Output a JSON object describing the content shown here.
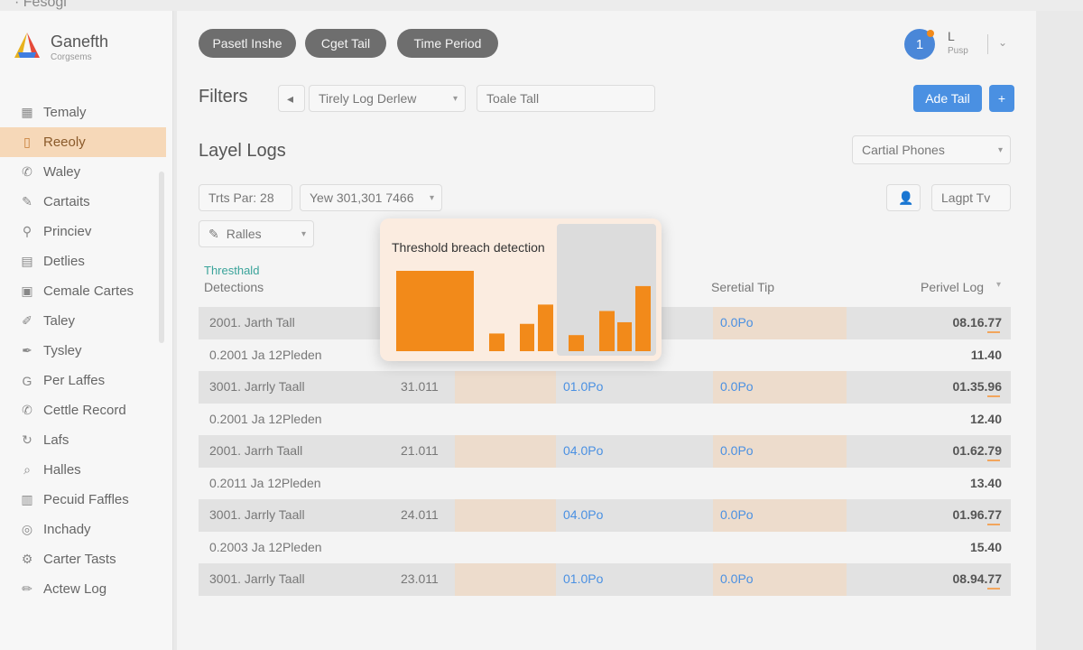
{
  "top_strip": {
    "text": "· Fesogi"
  },
  "brand": {
    "name": "Ganefth",
    "subtitle": "Corgsems"
  },
  "sidebar": {
    "items": [
      {
        "label": "Temaly",
        "icon": "grid-icon"
      },
      {
        "label": "Reeoly",
        "icon": "document-icon",
        "active": true
      },
      {
        "label": "Waley",
        "icon": "phone-icon"
      },
      {
        "label": "Cartaits",
        "icon": "edit-icon"
      },
      {
        "label": "Princiev",
        "icon": "pin-icon"
      },
      {
        "label": "Detlies",
        "icon": "table-icon"
      },
      {
        "label": "Cemale Cartes",
        "icon": "layout-icon"
      },
      {
        "label": "Taley",
        "icon": "pencil-icon"
      },
      {
        "label": "Tysley",
        "icon": "brush-icon"
      },
      {
        "label": "Per Laffes",
        "icon": "g-icon"
      },
      {
        "label": "Cettle Record",
        "icon": "phone-icon"
      },
      {
        "label": "Lafs",
        "icon": "refresh-icon"
      },
      {
        "label": "Halles",
        "icon": "search-icon"
      },
      {
        "label": "Pecuid Faffles",
        "icon": "chart-icon"
      },
      {
        "label": "Inchady",
        "icon": "circle-icon"
      },
      {
        "label": "Carter Tasts",
        "icon": "gear-icon"
      },
      {
        "label": "Actew Log",
        "icon": "pen-icon"
      }
    ]
  },
  "header": {
    "pills": [
      "Pasetl Inshe",
      "Cget Tail",
      "Time Period"
    ],
    "user": {
      "initial": "1",
      "name": "L",
      "sub": "Pusp"
    }
  },
  "filters": {
    "title": "Filters",
    "back_label": "◂",
    "select_value": "Tirely Log Derlew",
    "input_value": "Toale Tall",
    "add_button": "Ade Tail",
    "add_icon_button": "+"
  },
  "logs": {
    "title": "Layel Logs",
    "dropdown_value": "Cartial Phones",
    "chip_1": "Trts Par: 28",
    "chip_2": "Yew 301,301 7466",
    "chip_3": "Ralles",
    "export_button": "Lagpt Tv"
  },
  "table": {
    "headers": {
      "col1_top": "Thresthald",
      "col1_bottom": "Detections",
      "col4": "Seretial Tip",
      "col5": "Perivel Log"
    },
    "rows": [
      {
        "kind": "shaded",
        "c1": "2001. Jarth Tall",
        "c2": "",
        "c3": "",
        "c4": "0.0Po",
        "c5": "08.16.77"
      },
      {
        "kind": "plain",
        "c1": "0.2001 Ja 12Pleden",
        "c5": "11.40"
      },
      {
        "kind": "shaded",
        "c1": "3001. Jarrly Taall",
        "c2": "31.011",
        "c3": "01.0Po",
        "c4": "0.0Po",
        "c5": "01.35.96"
      },
      {
        "kind": "plain",
        "c1": "0.2001 Ja 12Pleden",
        "c5": "12.40"
      },
      {
        "kind": "shaded",
        "c1": "2001. Jarrh Taall",
        "c2": "21.011",
        "c3": "04.0Po",
        "c4": "0.0Po",
        "c5": "01.62.79"
      },
      {
        "kind": "plain",
        "c1": "0.2011 Ja 12Pleden",
        "c5": "13.40"
      },
      {
        "kind": "shaded",
        "c1": "3001. Jarrly Taall",
        "c2": "24.011",
        "c3": "04.0Po",
        "c4": "0.0Po",
        "c5": "01.96.77"
      },
      {
        "kind": "plain",
        "c1": "0.2003 Ja 12Pleden",
        "c5": "15.40"
      },
      {
        "kind": "shaded",
        "c1": "3001. Jarrly Taall",
        "c2": "23.011",
        "c3": "01.0Po",
        "c4": "0.0Po",
        "c5": "08.94.77"
      }
    ]
  },
  "popup": {
    "title": "Threshold breach detection",
    "bar_color": "#f28a1a",
    "bars": [
      1.0,
      0.22,
      0.34,
      0.58,
      0.2,
      0.5,
      0.36,
      0.81
    ]
  }
}
